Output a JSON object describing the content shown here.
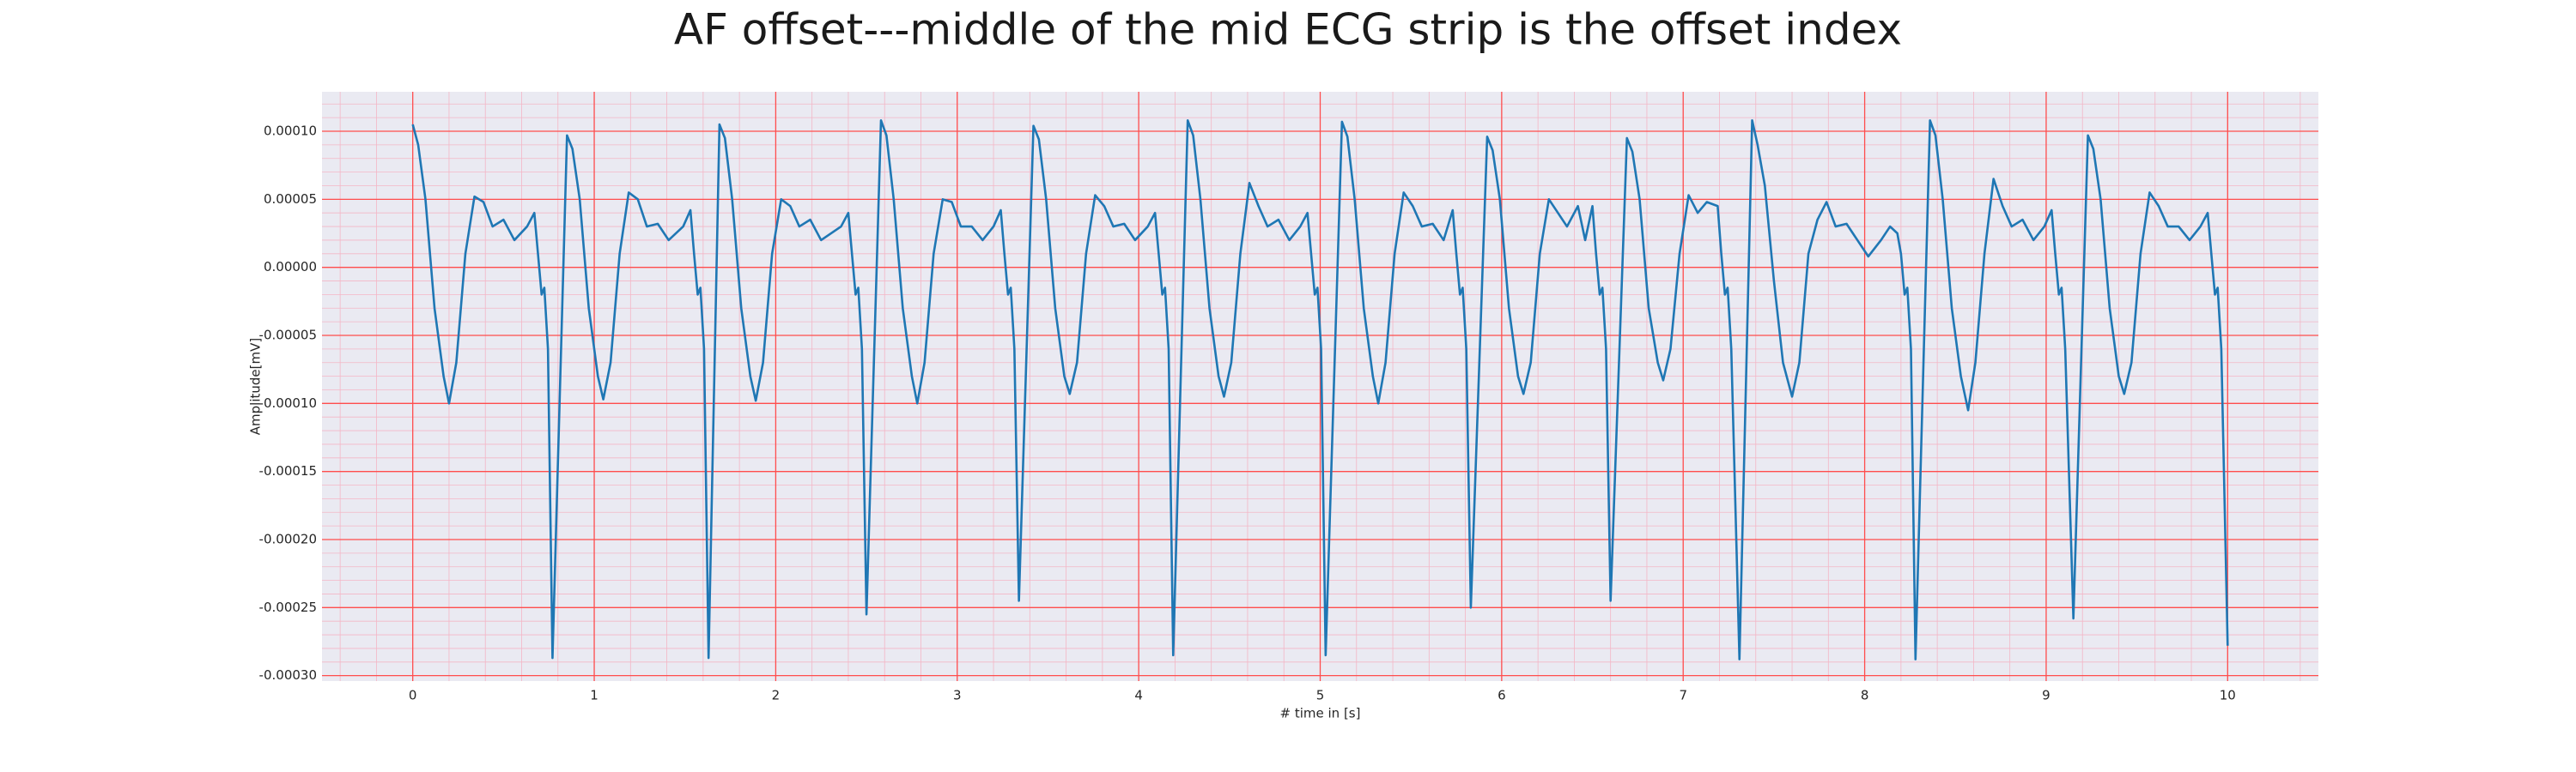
{
  "chart_data": {
    "type": "line",
    "title": "AF offset---middle of the mid ECG strip is the offset index",
    "xlabel": "# time in [s]",
    "ylabel": "Amplitude[mV]",
    "color": "#1f77b4",
    "grid": true,
    "xlim": [
      -0.5,
      10.5
    ],
    "ylim": [
      -0.000304,
      0.000129
    ],
    "xticks": [
      0,
      1,
      2,
      3,
      4,
      5,
      6,
      7,
      8,
      9,
      10
    ],
    "yticks": [
      {
        "value": -0.0003,
        "label": "-0.00030"
      },
      {
        "value": -0.00025,
        "label": "-0.00025"
      },
      {
        "value": -0.0002,
        "label": "-0.00020"
      },
      {
        "value": -0.00015,
        "label": "-0.00015"
      },
      {
        "value": -0.0001,
        "label": "-0.00010"
      },
      {
        "value": -5e-05,
        "label": "-0.00005"
      },
      {
        "value": 0,
        "label": "0.00000"
      },
      {
        "value": 5e-05,
        "label": "0.00005"
      },
      {
        "value": 0.0001,
        "label": "0.00010"
      }
    ],
    "x": [
      0,
      0.03,
      0.07,
      0.12,
      0.17,
      0.2,
      0.24,
      0.29,
      0.34,
      0.39,
      0.44,
      0.5,
      0.56,
      0.63,
      0.67,
      0.69,
      0.71,
      0.725,
      0.745,
      0.77,
      0.85,
      0.88,
      0.92,
      0.97,
      1.02,
      1.05,
      1.09,
      1.14,
      1.19,
      1.24,
      1.29,
      1.35,
      1.41,
      1.49,
      1.53,
      1.55,
      1.57,
      1.585,
      1.605,
      1.63,
      1.69,
      1.72,
      1.76,
      1.81,
      1.86,
      1.89,
      1.93,
      1.98,
      2.03,
      2.08,
      2.13,
      2.19,
      2.25,
      2.36,
      2.4,
      2.42,
      2.44,
      2.455,
      2.475,
      2.5,
      2.58,
      2.61,
      2.65,
      2.7,
      2.75,
      2.78,
      2.82,
      2.87,
      2.92,
      2.97,
      3.02,
      3.08,
      3.14,
      3.2,
      3.24,
      3.26,
      3.28,
      3.295,
      3.315,
      3.34,
      3.42,
      3.45,
      3.49,
      3.54,
      3.59,
      3.62,
      3.66,
      3.71,
      3.76,
      3.81,
      3.86,
      3.92,
      3.98,
      4.05,
      4.09,
      4.11,
      4.13,
      4.145,
      4.165,
      4.19,
      4.27,
      4.3,
      4.34,
      4.39,
      4.44,
      4.47,
      4.51,
      4.56,
      4.61,
      4.66,
      4.71,
      4.77,
      4.83,
      4.89,
      4.93,
      4.95,
      4.97,
      4.985,
      5.005,
      5.03,
      5.12,
      5.15,
      5.19,
      5.24,
      5.29,
      5.32,
      5.36,
      5.41,
      5.46,
      5.51,
      5.56,
      5.62,
      5.68,
      5.73,
      5.75,
      5.77,
      5.785,
      5.805,
      5.83,
      5.92,
      5.95,
      5.99,
      6.04,
      6.09,
      6.12,
      6.16,
      6.21,
      6.26,
      6.31,
      6.36,
      6.42,
      6.46,
      6.5,
      6.52,
      6.54,
      6.555,
      6.575,
      6.6,
      6.69,
      6.72,
      6.76,
      6.81,
      6.86,
      6.89,
      6.93,
      6.98,
      7.03,
      7.08,
      7.13,
      7.19,
      7.21,
      7.23,
      7.245,
      7.265,
      7.31,
      7.38,
      7.41,
      7.45,
      7.5,
      7.55,
      7.6,
      7.64,
      7.69,
      7.74,
      7.79,
      7.84,
      7.9,
      7.96,
      8.02,
      8.09,
      8.14,
      8.18,
      8.2,
      8.22,
      8.235,
      8.255,
      8.28,
      8.36,
      8.39,
      8.43,
      8.48,
      8.53,
      8.57,
      8.61,
      8.66,
      8.71,
      8.76,
      8.81,
      8.87,
      8.93,
      8.99,
      9.03,
      9.05,
      9.07,
      9.085,
      9.105,
      9.15,
      9.23,
      9.26,
      9.3,
      9.35,
      9.4,
      9.43,
      9.47,
      9.52,
      9.57,
      9.62,
      9.67,
      9.73,
      9.79,
      9.85,
      9.89,
      9.91,
      9.93,
      9.945,
      9.965,
      10
    ],
    "values": [
      0.000105,
      9e-05,
      5e-05,
      -3e-05,
      -8e-05,
      -0.0001,
      -7e-05,
      1e-05,
      5.2e-05,
      4.8e-05,
      3e-05,
      3.5e-05,
      2e-05,
      3e-05,
      4e-05,
      1e-05,
      -2e-05,
      -1.5e-05,
      -6e-05,
      -0.000287,
      9.7e-05,
      8.7e-05,
      5e-05,
      -3e-05,
      -8e-05,
      -9.7e-05,
      -7e-05,
      1e-05,
      5.5e-05,
      5e-05,
      3e-05,
      3.2e-05,
      2e-05,
      3e-05,
      4.2e-05,
      1e-05,
      -2e-05,
      -1.5e-05,
      -6e-05,
      -0.000287,
      0.000105,
      9.5e-05,
      5e-05,
      -3e-05,
      -8e-05,
      -9.8e-05,
      -7e-05,
      1e-05,
      5e-05,
      4.5e-05,
      3e-05,
      3.5e-05,
      2e-05,
      3e-05,
      4e-05,
      1e-05,
      -2e-05,
      -1.5e-05,
      -6e-05,
      -0.000255,
      0.000108,
      9.7e-05,
      5e-05,
      -3e-05,
      -8e-05,
      -0.0001,
      -7e-05,
      1e-05,
      5e-05,
      4.8e-05,
      3e-05,
      3e-05,
      2e-05,
      3e-05,
      4.2e-05,
      1e-05,
      -2e-05,
      -1.5e-05,
      -6e-05,
      -0.000245,
      0.000104,
      9.4e-05,
      5e-05,
      -3e-05,
      -8e-05,
      -9.3e-05,
      -7e-05,
      1e-05,
      5.3e-05,
      4.5e-05,
      3e-05,
      3.2e-05,
      2e-05,
      3e-05,
      4e-05,
      1e-05,
      -2e-05,
      -1.5e-05,
      -6e-05,
      -0.000285,
      0.000108,
      9.7e-05,
      5e-05,
      -3e-05,
      -8e-05,
      -9.5e-05,
      -7e-05,
      1e-05,
      6.2e-05,
      4.5e-05,
      3e-05,
      3.5e-05,
      2e-05,
      3e-05,
      4e-05,
      1e-05,
      -2e-05,
      -1.5e-05,
      -6e-05,
      -0.000285,
      0.000107,
      9.6e-05,
      5e-05,
      -3e-05,
      -8e-05,
      -0.0001,
      -7e-05,
      1e-05,
      5.5e-05,
      4.5e-05,
      3e-05,
      3.2e-05,
      2e-05,
      4.2e-05,
      1e-05,
      -2e-05,
      -1.5e-05,
      -6e-05,
      -0.00025,
      9.6e-05,
      8.6e-05,
      5e-05,
      -3e-05,
      -8e-05,
      -9.3e-05,
      -7e-05,
      1e-05,
      5e-05,
      4e-05,
      3e-05,
      4.5e-05,
      2e-05,
      4.5e-05,
      1e-05,
      -2e-05,
      -1.5e-05,
      -6e-05,
      -0.000245,
      9.5e-05,
      8.5e-05,
      5e-05,
      -3e-05,
      -7e-05,
      -8.3e-05,
      -6e-05,
      1e-05,
      5.3e-05,
      4e-05,
      4.8e-05,
      4.5e-05,
      1e-05,
      -2e-05,
      -1.5e-05,
      -6e-05,
      -0.000288,
      0.000108,
      9e-05,
      6e-05,
      -1e-05,
      -7e-05,
      -9.5e-05,
      -7e-05,
      1e-05,
      3.5e-05,
      4.8e-05,
      3e-05,
      3.2e-05,
      2e-05,
      8e-06,
      2e-05,
      3e-05,
      2.5e-05,
      1e-05,
      -2e-05,
      -1.5e-05,
      -6e-05,
      -0.000288,
      0.000108,
      9.7e-05,
      5e-05,
      -3e-05,
      -8e-05,
      -0.000105,
      -7e-05,
      1e-05,
      6.5e-05,
      4.5e-05,
      3e-05,
      3.5e-05,
      2e-05,
      3e-05,
      4.2e-05,
      1e-05,
      -2e-05,
      -1.5e-05,
      -6e-05,
      -0.000258,
      9.7e-05,
      8.7e-05,
      5e-05,
      -3e-05,
      -8e-05,
      -9.3e-05,
      -7e-05,
      1e-05,
      5.5e-05,
      4.5e-05,
      3e-05,
      3e-05,
      2e-05,
      3e-05,
      4e-05,
      1e-05,
      -2e-05,
      -1.5e-05,
      -6e-05,
      -0.000278
    ]
  }
}
